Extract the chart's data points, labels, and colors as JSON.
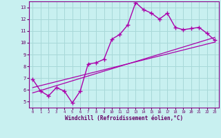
{
  "title": "",
  "xlabel": "Windchill (Refroidissement éolien,°C)",
  "ylabel": "",
  "background_color": "#c8f0f0",
  "grid_color": "#a8d8d8",
  "line_color": "#aa00aa",
  "axis_color": "#880088",
  "text_color": "#660066",
  "xlim": [
    -0.5,
    23.5
  ],
  "ylim": [
    4.5,
    13.5
  ],
  "xticks": [
    0,
    1,
    2,
    3,
    4,
    5,
    6,
    7,
    8,
    9,
    10,
    11,
    12,
    13,
    14,
    15,
    16,
    17,
    18,
    19,
    20,
    21,
    22,
    23
  ],
  "yticks": [
    5,
    6,
    7,
    8,
    9,
    10,
    11,
    12,
    13
  ],
  "data_x": [
    0,
    1,
    2,
    3,
    4,
    5,
    6,
    7,
    8,
    9,
    10,
    11,
    12,
    13,
    14,
    15,
    16,
    17,
    18,
    19,
    20,
    21,
    22,
    23
  ],
  "data_y": [
    6.9,
    5.9,
    5.5,
    6.2,
    5.9,
    4.9,
    5.9,
    8.2,
    8.3,
    8.6,
    10.3,
    10.7,
    11.5,
    13.4,
    12.8,
    12.5,
    12.0,
    12.5,
    11.3,
    11.1,
    11.2,
    11.3,
    10.8,
    10.2
  ],
  "trendline1_x": [
    0,
    23
  ],
  "trendline1_y": [
    6.2,
    10.05
  ],
  "trendline2_x": [
    0,
    23
  ],
  "trendline2_y": [
    5.75,
    10.45
  ],
  "marker": "+",
  "markersize": 5,
  "linewidth": 1.0
}
